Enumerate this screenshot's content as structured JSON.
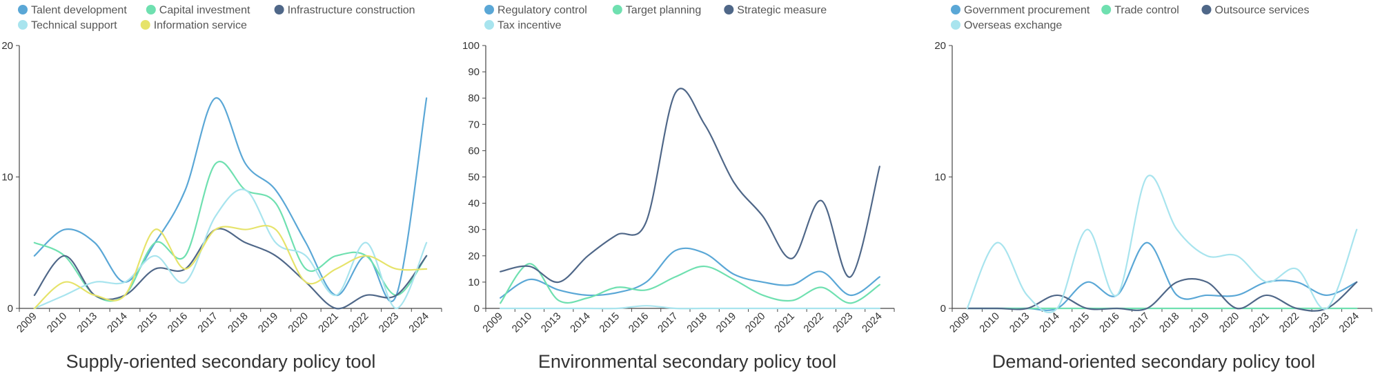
{
  "chart_data": [
    {
      "type": "line",
      "title": "Supply-oriented secondary policy tool",
      "xlabel": "",
      "ylabel": "",
      "categories": [
        "2009",
        "2010",
        "2013",
        "2014",
        "2015",
        "2016",
        "2017",
        "2018",
        "2019",
        "2020",
        "2021",
        "2022",
        "2023",
        "2024"
      ],
      "ylim": [
        0,
        20
      ],
      "yticks": [
        0,
        10,
        20
      ],
      "legend_position": "top-left",
      "series": [
        {
          "name": "Talent development",
          "color": "#5aa7d6",
          "values": [
            4,
            6,
            5,
            2,
            5,
            9,
            16,
            11,
            9,
            5,
            1,
            4,
            1,
            16
          ]
        },
        {
          "name": "Capital investment",
          "color": "#6fe0b0",
          "values": [
            5,
            4,
            1,
            1,
            5,
            4,
            11,
            9,
            8,
            3,
            4,
            4,
            1,
            4
          ]
        },
        {
          "name": "Infrastructure construction",
          "color": "#4f6788",
          "values": [
            1,
            4,
            1,
            1,
            3,
            3,
            6,
            5,
            4,
            2,
            0,
            1,
            1,
            4
          ]
        },
        {
          "name": "Technical support",
          "color": "#a8e4ee",
          "values": [
            0,
            1,
            2,
            2,
            4,
            2,
            7,
            9,
            5,
            4,
            1,
            5,
            0,
            5
          ]
        },
        {
          "name": "Information service",
          "color": "#e6e36a",
          "values": [
            0,
            2,
            1,
            1,
            6,
            3,
            6,
            6,
            6,
            2,
            3,
            4,
            3,
            3
          ]
        }
      ]
    },
    {
      "type": "line",
      "title": "Environmental secondary policy tool",
      "xlabel": "",
      "ylabel": "",
      "categories": [
        "2009",
        "2010",
        "2013",
        "2014",
        "2015",
        "2016",
        "2017",
        "2018",
        "2019",
        "2020",
        "2021",
        "2022",
        "2023",
        "2024"
      ],
      "ylim": [
        0,
        100
      ],
      "yticks": [
        0,
        10,
        20,
        30,
        40,
        50,
        60,
        70,
        80,
        90,
        100
      ],
      "legend_position": "top-left",
      "series": [
        {
          "name": "Regulatory control",
          "color": "#5aa7d6",
          "values": [
            4,
            11,
            7,
            5,
            6,
            10,
            22,
            21,
            13,
            10,
            9,
            14,
            5,
            12
          ]
        },
        {
          "name": "Target planning",
          "color": "#6fe0b0",
          "values": [
            2,
            17,
            3,
            4,
            8,
            7,
            12,
            16,
            11,
            5,
            3,
            8,
            2,
            9
          ]
        },
        {
          "name": "Strategic measure",
          "color": "#4f6788",
          "values": [
            14,
            16,
            10,
            20,
            28,
            33,
            82,
            70,
            48,
            35,
            19,
            41,
            12,
            54
          ]
        },
        {
          "name": "Tax incentive",
          "color": "#a8e4ee",
          "values": [
            0,
            0,
            0,
            0,
            0,
            1,
            0,
            0,
            0,
            0,
            0,
            0,
            0,
            0
          ]
        }
      ]
    },
    {
      "type": "line",
      "title": "Demand-oriented secondary policy tool",
      "xlabel": "",
      "ylabel": "",
      "categories": [
        "2009",
        "2010",
        "2013",
        "2014",
        "2015",
        "2016",
        "2017",
        "2018",
        "2019",
        "2020",
        "2021",
        "2022",
        "2023",
        "2024"
      ],
      "ylim": [
        0,
        20
      ],
      "yticks": [
        0,
        10,
        20
      ],
      "legend_position": "top-left",
      "series": [
        {
          "name": "Government procurement",
          "color": "#5aa7d6",
          "values": [
            0,
            0,
            0,
            0,
            2,
            1,
            5,
            1,
            1,
            1,
            2,
            2,
            1,
            2
          ]
        },
        {
          "name": "Trade control",
          "color": "#6fe0b0",
          "values": [
            0,
            0,
            0,
            0,
            0,
            0,
            0,
            0,
            0,
            0,
            0,
            0,
            0,
            0
          ]
        },
        {
          "name": "Outsource services",
          "color": "#4f6788",
          "values": [
            0,
            0,
            0,
            1,
            0,
            0,
            0,
            2,
            2,
            0,
            1,
            0,
            0,
            2
          ]
        },
        {
          "name": "Overseas exchange",
          "color": "#a8e4ee",
          "values": [
            0,
            5,
            1,
            0,
            6,
            1,
            10,
            6,
            4,
            4,
            2,
            3,
            0,
            6
          ]
        }
      ]
    }
  ]
}
